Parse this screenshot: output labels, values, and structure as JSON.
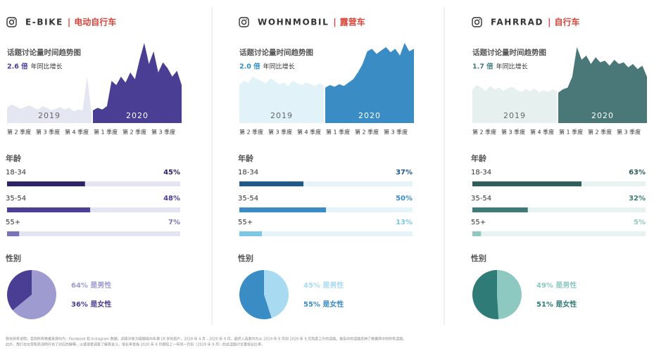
{
  "panels": [
    {
      "brand": "E-BIKE",
      "separator": "|",
      "name_cn": "电动自行车",
      "accent": "#4a3d94",
      "trend_title": "话题讨论量时间趋势图",
      "growth": "2.6 倍",
      "growth_text": "年同比增长",
      "trend": {
        "ylim": [
          0,
          100
        ],
        "series": [
          {
            "name": "2019",
            "color": "#e4e6f2",
            "values": [
              18,
              22,
              20,
              17,
              19,
              21,
              18,
              16,
              20,
              18,
              15,
              17,
              19,
              16,
              18,
              14,
              16,
              15,
              55,
              12
            ]
          },
          {
            "name": "2020",
            "color": "#4a3d94",
            "values": [
              15,
              18,
              16,
              20,
              50,
              45,
              55,
              48,
              60,
              52,
              75,
              95,
              70,
              85,
              60,
              72,
              65,
              55,
              62,
              45
            ]
          }
        ]
      },
      "quarters": [
        "第 2 季度",
        "第 3 季度",
        "第 4 季度",
        "第 1 季度",
        "第 2 季度",
        "第 3 季度"
      ],
      "age_title": "年龄",
      "age": [
        {
          "label": "18-34",
          "value": 45,
          "value_label": "45%",
          "color": "#2d2466"
        },
        {
          "label": "35-54",
          "value": 48,
          "value_label": "48%",
          "color": "#4b3f96"
        },
        {
          "label": "55+",
          "value": 7,
          "value_label": "7%",
          "color": "#7b74b8"
        }
      ],
      "track": "#e3e5f3",
      "gender_title": "性别",
      "gender": [
        {
          "value": 64,
          "label": "64% 是男性",
          "color": "#9d9bd0"
        },
        {
          "value": 36,
          "label": "36% 是女性",
          "color": "#4a3d94"
        }
      ]
    },
    {
      "brand": "WOHNMOBIL",
      "separator": "|",
      "name_cn": "露营车",
      "accent": "#2d8fc4",
      "trend_title": "话题讨论量时间趋势图",
      "growth": "2.0 倍",
      "growth_text": "年同比增长",
      "trend": {
        "ylim": [
          0,
          100
        ],
        "series": [
          {
            "name": "2019",
            "color": "#e2f2f9",
            "values": [
              45,
              50,
              48,
              55,
              52,
              50,
              47,
              53,
              50,
              46,
              48,
              44,
              50,
              47,
              45,
              48,
              46,
              44,
              47,
              45
            ]
          },
          {
            "name": "2020",
            "color": "#3a8cc4",
            "values": [
              42,
              45,
              43,
              46,
              44,
              48,
              52,
              60,
              70,
              85,
              88,
              82,
              86,
              90,
              84,
              88,
              80,
              95,
              85,
              88
            ]
          }
        ]
      },
      "quarters": [
        "第 2 季度",
        "第 3 季度",
        "第 4 季度",
        "第 1 季度",
        "第 2 季度",
        "第 3 季度"
      ],
      "age_title": "年龄",
      "age": [
        {
          "label": "18-34",
          "value": 37,
          "value_label": "37%",
          "color": "#1f5a8a"
        },
        {
          "label": "35-54",
          "value": 50,
          "value_label": "50%",
          "color": "#3a8cc4"
        },
        {
          "label": "55+",
          "value": 13,
          "value_label": "13%",
          "color": "#7cc7e6"
        }
      ],
      "track": "#e6f3f8",
      "gender_title": "性别",
      "gender": [
        {
          "value": 45,
          "label": "45% 是男性",
          "color": "#a8dbf2"
        },
        {
          "value": 55,
          "label": "55% 是女性",
          "color": "#3a8cc4"
        }
      ]
    },
    {
      "brand": "FAHRRAD",
      "separator": "|",
      "name_cn": "自行车",
      "accent": "#3e7a77",
      "trend_title": "话题讨论量时间趋势图",
      "growth": "1.7 倍",
      "growth_text": "年同比增长",
      "trend": {
        "ylim": [
          0,
          100
        ],
        "series": [
          {
            "name": "2019",
            "color": "#e6f1ef",
            "values": [
              40,
              45,
              42,
              38,
              44,
              40,
              42,
              38,
              41,
              43,
              39,
              37,
              40,
              38,
              41,
              36,
              39,
              37,
              40,
              38
            ]
          },
          {
            "name": "2020",
            "color": "#4a7878",
            "values": [
              36,
              40,
              42,
              55,
              90,
              75,
              80,
              70,
              78,
              72,
              74,
              68,
              75,
              70,
              72,
              66,
              70,
              64,
              68,
              55
            ]
          }
        ]
      },
      "quarters": [
        "第 2 季度",
        "第 3 季度",
        "第 4 季度",
        "第 1 季度",
        "第 2 季度",
        "第 3 季度"
      ],
      "age_title": "年龄",
      "age": [
        {
          "label": "18-34",
          "value": 63,
          "value_label": "63%",
          "color": "#2e5f5c"
        },
        {
          "label": "35-54",
          "value": 32,
          "value_label": "32%",
          "color": "#3e7a77"
        },
        {
          "label": "55+",
          "value": 5,
          "value_label": "5%",
          "color": "#8ec9c1"
        }
      ],
      "track": "#e8f3f1",
      "gender_title": "性别",
      "gender": [
        {
          "value": 49,
          "label": "49% 是男性",
          "color": "#8ec9c1"
        },
        {
          "value": 51,
          "label": "51% 是女性",
          "color": "#2f7b78"
        }
      ]
    }
  ],
  "footnote": [
    "除非另有说明，否则所有数据来源均为：Facebook 和 Instagram 数据，调查对象为德国境内年满 18 岁的用户，2019 年 4 月 - 2020 年 9 月。最终入选者均为从 2019 年 9 月到 2020 年 9 月热度上升的话题。报告中的话题反映了数据库中的所有话题。",
    "此外，我们也在常和热词例开充了对应的解释，以便读者调查了解其含义。增长率是指 2020 年 9 月相较上一年同一月份（2019 年 9 月）的总话题讨论量增长比率。"
  ]
}
